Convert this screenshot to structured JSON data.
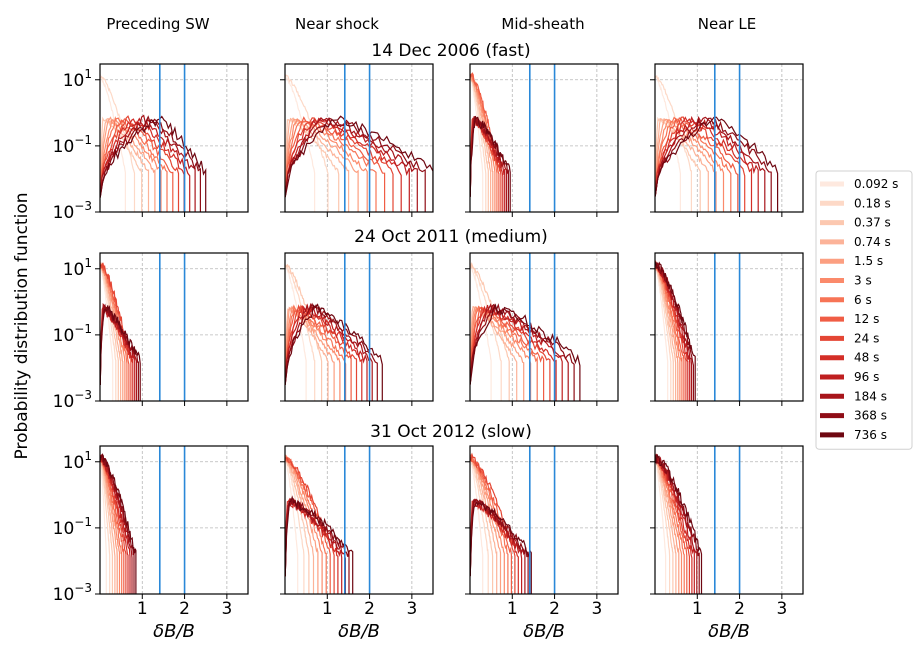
{
  "figure": {
    "ylabel": "Probability distribution function",
    "xlabel": "δB/B",
    "column_titles": [
      "Preceding SW",
      "Near shock",
      "Mid-sheath",
      "Near LE"
    ],
    "row_titles": [
      "14 Dec 2006 (fast)",
      "24 Oct 2011 (medium)",
      "31 Oct 2012 (slow)"
    ],
    "colors": {
      "reference_lines": "#2a88d8",
      "grid": "#b8b8b8",
      "series_ramp": [
        "#fee9df",
        "#fdd9c7",
        "#fcc8b0",
        "#fcb399",
        "#fc9f81",
        "#fb8a6b",
        "#f77456",
        "#f05d45",
        "#e44634",
        "#d42e27",
        "#bf1f20",
        "#a8151b",
        "#8f0d16",
        "#6e0711"
      ]
    }
  },
  "chart_data": {
    "type": "line",
    "layout": "3x4 grid of panels sharing axes",
    "x_scale": "linear",
    "y_scale": "log",
    "xlim": [
      0,
      3.5
    ],
    "ylim": [
      0.001,
      30
    ],
    "x_ticks": [
      {
        "v": 1,
        "label": "1"
      },
      {
        "v": 2,
        "label": "2"
      },
      {
        "v": 3,
        "label": "3"
      }
    ],
    "y_ticks": [
      {
        "v": 10,
        "label": "10",
        "exp": "1"
      },
      {
        "v": 0.1,
        "label": "10",
        "exp": "−1"
      },
      {
        "v": 0.001,
        "label": "10",
        "exp": "−3"
      }
    ],
    "grid": true,
    "legend_position": "right",
    "reference_lines_x": [
      1.414,
      2.0
    ],
    "series": [
      {
        "name": "0.092 s",
        "scale": 0.092
      },
      {
        "name": "0.18 s",
        "scale": 0.18
      },
      {
        "name": "0.37 s",
        "scale": 0.37
      },
      {
        "name": "0.74 s",
        "scale": 0.74
      },
      {
        "name": "1.5 s",
        "scale": 1.5
      },
      {
        "name": "3 s",
        "scale": 3
      },
      {
        "name": "6 s",
        "scale": 6
      },
      {
        "name": "12 s",
        "scale": 12
      },
      {
        "name": "24 s",
        "scale": 24
      },
      {
        "name": "48 s",
        "scale": 48
      },
      {
        "name": "96 s",
        "scale": 96
      },
      {
        "name": "184 s",
        "scale": 184
      },
      {
        "name": "368 s",
        "scale": 368
      },
      {
        "name": "736 s",
        "scale": 736
      }
    ],
    "panels": [
      {
        "row": 0,
        "col": 0,
        "x_end_min": 0.6,
        "x_end_max": 2.5,
        "peak_x_max": 1.35
      },
      {
        "row": 0,
        "col": 1,
        "x_end_min": 0.7,
        "x_end_max": 3.5,
        "peak_x_max": 1.2
      },
      {
        "row": 0,
        "col": 2,
        "x_end_min": 0.3,
        "x_end_max": 0.95,
        "peak_x_max": 0.12
      },
      {
        "row": 0,
        "col": 3,
        "x_end_min": 0.6,
        "x_end_max": 2.9,
        "peak_x_max": 1.35
      },
      {
        "row": 1,
        "col": 0,
        "x_end_min": 0.3,
        "x_end_max": 0.95,
        "peak_x_max": 0.1
      },
      {
        "row": 1,
        "col": 1,
        "x_end_min": 0.5,
        "x_end_max": 2.3,
        "peak_x_max": 0.7
      },
      {
        "row": 1,
        "col": 2,
        "x_end_min": 0.5,
        "x_end_max": 2.6,
        "peak_x_max": 0.6
      },
      {
        "row": 1,
        "col": 3,
        "x_end_min": 0.3,
        "x_end_max": 0.95,
        "peak_x_max": 0.05
      },
      {
        "row": 2,
        "col": 0,
        "x_end_min": 0.15,
        "x_end_max": 0.85,
        "peak_x_max": 0.05
      },
      {
        "row": 2,
        "col": 1,
        "x_end_min": 0.3,
        "x_end_max": 1.6,
        "peak_x_max": 0.1
      },
      {
        "row": 2,
        "col": 2,
        "x_end_min": 0.3,
        "x_end_max": 1.45,
        "peak_x_max": 0.1
      },
      {
        "row": 2,
        "col": 3,
        "x_end_min": 0.25,
        "x_end_max": 1.1,
        "peak_x_max": 0.05
      }
    ]
  }
}
